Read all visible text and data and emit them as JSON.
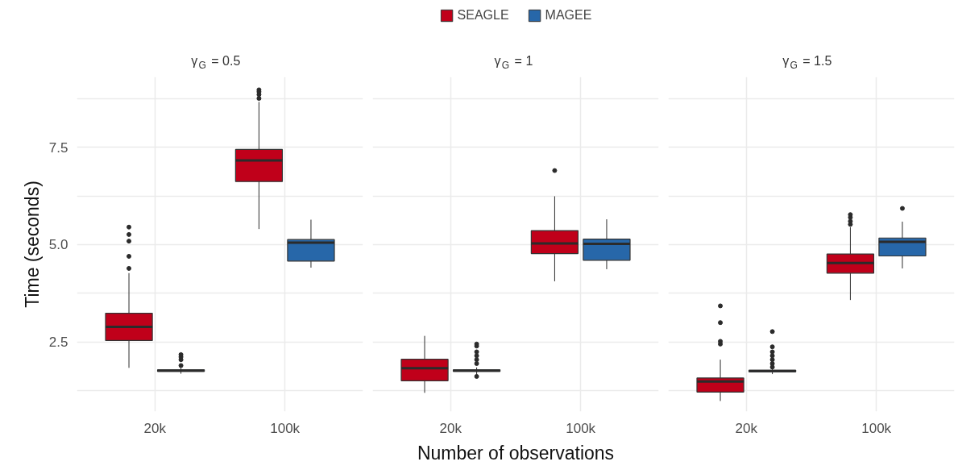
{
  "chart_data": [
    {
      "type": "box",
      "title": "γ$_{G}$ = 0.5",
      "ylabel": "Time (seconds)",
      "categories": [
        "20k",
        "100k"
      ],
      "ylim": [
        0.72,
        9.3
      ],
      "yticks": [
        {
          "value": 1.25,
          "label": null
        },
        {
          "value": 2.5,
          "label": "2.5"
        },
        {
          "value": 3.75,
          "label": null
        },
        {
          "value": 5.0,
          "label": "5.0"
        },
        {
          "value": 6.25,
          "label": null
        },
        {
          "value": 7.5,
          "label": "7.5"
        },
        {
          "value": 8.75,
          "label": null
        }
      ],
      "grid": true,
      "series": [
        {
          "color": "#c0001a",
          "boxes": [
            {
              "low": 1.84,
              "q1": 2.54,
              "median": 2.89,
              "q3": 3.24,
              "high": 4.27,
              "outliers": [
                4.39,
                4.7,
                5.09,
                5.26,
                5.45
              ]
            },
            {
              "low": 5.4,
              "q1": 6.62,
              "median": 7.16,
              "q3": 7.44,
              "high": 8.66,
              "outliers": [
                8.75,
                8.85,
                8.92,
                8.97
              ]
            }
          ]
        },
        {
          "color": "#2767a9",
          "boxes": [
            {
              "low": 1.69,
              "q1": 1.75,
              "median": 1.77,
              "q3": 1.79,
              "high": 1.85,
              "outliers": [
                1.9,
                2.05,
                2.12,
                2.18
              ]
            },
            {
              "low": 4.41,
              "q1": 4.58,
              "median": 5.05,
              "q3": 5.13,
              "high": 5.64
            }
          ]
        }
      ]
    },
    {
      "type": "box",
      "title": "γ$_{G}$ = 1",
      "xlabel": "Number of observations",
      "categories": [
        "20k",
        "100k"
      ],
      "ylim": [
        0.72,
        9.3
      ],
      "yticks": [
        {
          "value": 1.25,
          "label": null
        },
        {
          "value": 2.5,
          "label": null
        },
        {
          "value": 3.75,
          "label": null
        },
        {
          "value": 5.0,
          "label": null
        },
        {
          "value": 6.25,
          "label": null
        },
        {
          "value": 7.5,
          "label": null
        },
        {
          "value": 8.75,
          "label": null
        }
      ],
      "grid": true,
      "legend": "top",
      "tick_labels": "x",
      "series": [
        {
          "name": "SEAGLE",
          "color": "#c0001a",
          "boxes": [
            {
              "low": 1.2,
              "q1": 1.51,
              "median": 1.83,
              "q3": 2.06,
              "high": 2.66
            },
            {
              "low": 4.06,
              "q1": 4.77,
              "median": 5.03,
              "q3": 5.36,
              "high": 6.24,
              "outliers": [
                6.9
              ]
            }
          ]
        },
        {
          "name": "MAGEE",
          "color": "#2767a9",
          "boxes": [
            {
              "low": 1.65,
              "q1": 1.75,
              "median": 1.77,
              "q3": 1.79,
              "high": 1.85,
              "outliers": [
                1.62,
                1.95,
                2.05,
                2.15,
                2.25,
                2.4,
                2.45
              ]
            },
            {
              "low": 4.37,
              "q1": 4.6,
              "median": 5.02,
              "q3": 5.14,
              "high": 5.65
            }
          ]
        }
      ]
    },
    {
      "type": "box",
      "title": "γ$_{G}$ = 1.5",
      "categories": [
        "20k",
        "100k"
      ],
      "ylim": [
        0.72,
        9.3
      ],
      "yticks": [
        {
          "value": 1.25,
          "label": null
        },
        {
          "value": 2.5,
          "label": null
        },
        {
          "value": 3.75,
          "label": null
        },
        {
          "value": 5.0,
          "label": null
        },
        {
          "value": 6.25,
          "label": null
        },
        {
          "value": 7.5,
          "label": null
        },
        {
          "value": 8.75,
          "label": null
        }
      ],
      "grid": true,
      "tick_labels": "x",
      "series": [
        {
          "color": "#c0001a",
          "boxes": [
            {
              "low": 0.99,
              "q1": 1.22,
              "median": 1.49,
              "q3": 1.58,
              "high": 2.05,
              "outliers": [
                2.45,
                2.52,
                3.0,
                3.43
              ]
            },
            {
              "low": 3.58,
              "q1": 4.27,
              "median": 4.53,
              "q3": 4.76,
              "high": 5.45,
              "outliers": [
                5.52,
                5.6,
                5.7,
                5.77
              ]
            }
          ]
        },
        {
          "color": "#2767a9",
          "boxes": [
            {
              "low": 1.68,
              "q1": 1.74,
              "median": 1.76,
              "q3": 1.78,
              "high": 1.84,
              "outliers": [
                1.86,
                1.95,
                2.05,
                2.15,
                2.25,
                2.38,
                2.77
              ]
            },
            {
              "low": 4.39,
              "q1": 4.71,
              "median": 5.07,
              "q3": 5.17,
              "high": 5.59,
              "outliers": [
                5.93
              ]
            }
          ]
        }
      ]
    }
  ]
}
